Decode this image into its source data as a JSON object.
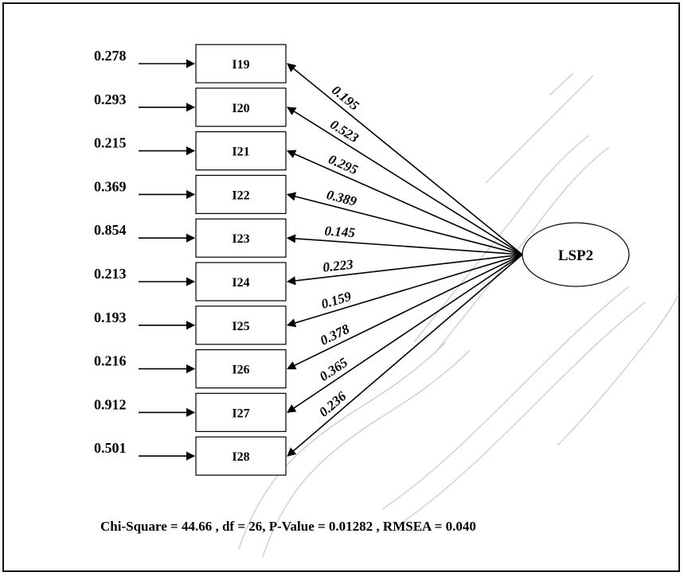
{
  "latent": {
    "label": "LSP2"
  },
  "paths": [
    {
      "item": "I19",
      "error": "0.278",
      "loading": "0.195"
    },
    {
      "item": "I20",
      "error": "0.293",
      "loading": "0.523"
    },
    {
      "item": "I21",
      "error": "0.215",
      "loading": "0.295"
    },
    {
      "item": "I22",
      "error": "0.369",
      "loading": "0.389"
    },
    {
      "item": "I23",
      "error": "0.854",
      "loading": "0.145"
    },
    {
      "item": "I24",
      "error": "0.213",
      "loading": "0.223"
    },
    {
      "item": "I25",
      "error": "0.193",
      "loading": "0.159"
    },
    {
      "item": "I26",
      "error": "0.216",
      "loading": "0.378"
    },
    {
      "item": "I27",
      "error": "0.912",
      "loading": "0.365"
    },
    {
      "item": "I28",
      "error": "0.501",
      "loading": "0.236"
    }
  ],
  "fit_statistics": "Chi-Square = 44.66 , df = 26, P-Value = 0.01282 , RMSEA = 0.040"
}
